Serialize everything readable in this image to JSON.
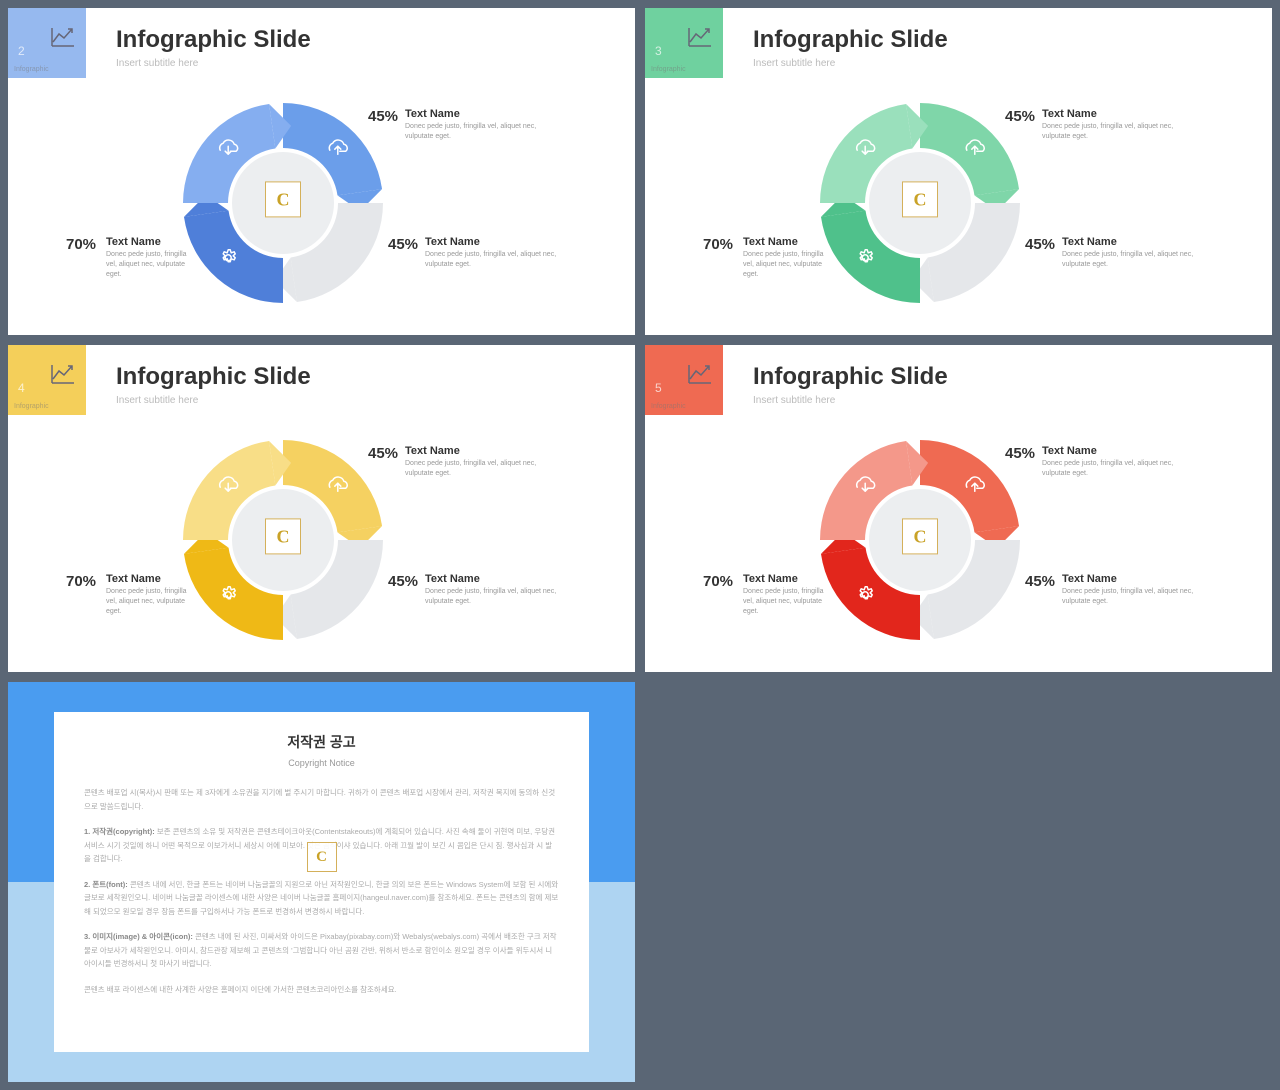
{
  "slides": [
    {
      "num": "2",
      "sublabel": "Infographic",
      "title": "Infographic Slide",
      "subtitle": "Insert subtitle here",
      "corner_color": "#96b9ef",
      "seg_colors": [
        "#6b9eea",
        "#e5e7ea",
        "#4f7fd9",
        "#85aef0"
      ],
      "icon_stroke": "#778",
      "labels": {
        "tr": {
          "pct": "45%",
          "name": "Text Name",
          "desc": "Donec pede justo, fringilla vel, aliquet nec, vulputate eget."
        },
        "br": {
          "pct": "45%",
          "name": "Text Name",
          "desc": "Donec pede justo, fringilla vel, aliquet nec, vulputate eget."
        },
        "bl": {
          "pct": "70%",
          "name": "Text Name",
          "desc": "Donec pede justo, fringilla vel, aliquet nec, vulputate eget."
        }
      }
    },
    {
      "num": "3",
      "sublabel": "Infographic",
      "title": "Infographic Slide",
      "subtitle": "Insert subtitle here",
      "corner_color": "#6fd19f",
      "seg_colors": [
        "#7fd6a9",
        "#e5e7ea",
        "#4fc18b",
        "#9ae0bc"
      ],
      "icon_stroke": "#778",
      "labels": {
        "tr": {
          "pct": "45%",
          "name": "Text Name",
          "desc": "Donec pede justo, fringilla vel, aliquet nec, vulputate eget."
        },
        "br": {
          "pct": "45%",
          "name": "Text Name",
          "desc": "Donec pede justo, fringilla vel, aliquet nec, vulputate eget."
        },
        "bl": {
          "pct": "70%",
          "name": "Text Name",
          "desc": "Donec pede justo, fringilla vel, aliquet nec, vulputate eget."
        }
      }
    },
    {
      "num": "4",
      "sublabel": "Infographic",
      "title": "Infographic Slide",
      "subtitle": "Insert subtitle here",
      "corner_color": "#f4cf5a",
      "seg_colors": [
        "#f5d161",
        "#e5e7ea",
        "#efb916",
        "#f8de87"
      ],
      "icon_stroke": "#778",
      "labels": {
        "tr": {
          "pct": "45%",
          "name": "Text Name",
          "desc": "Donec pede justo, fringilla vel, aliquet nec, vulputate eget."
        },
        "br": {
          "pct": "45%",
          "name": "Text Name",
          "desc": "Donec pede justo, fringilla vel, aliquet nec, vulputate eget."
        },
        "bl": {
          "pct": "70%",
          "name": "Text Name",
          "desc": "Donec pede justo, fringilla vel, aliquet nec, vulputate eget."
        }
      }
    },
    {
      "num": "5",
      "sublabel": "Infographic",
      "title": "Infographic Slide",
      "subtitle": "Insert subtitle here",
      "corner_color": "#ef6a52",
      "seg_colors": [
        "#ef6a52",
        "#e5e7ea",
        "#e2261c",
        "#f4988a"
      ],
      "icon_stroke": "#778",
      "labels": {
        "tr": {
          "pct": "45%",
          "name": "Text Name",
          "desc": "Donec pede justo, fringilla vel, aliquet nec, vulputate eget."
        },
        "br": {
          "pct": "45%",
          "name": "Text Name",
          "desc": "Donec pede justo, fringilla vel, aliquet nec, vulputate eget."
        },
        "bl": {
          "pct": "70%",
          "name": "Text Name",
          "desc": "Donec pede justo, fringilla vel, aliquet nec, vulputate eget."
        }
      }
    }
  ],
  "notice": {
    "title": "저작권 공고",
    "subtitle": "Copyright Notice",
    "border_top_color": "#4a9cf0",
    "border_bottom_color": "#aed4f2",
    "p1": "콘텐츠 배포업 시(복사)시 판매 또는 제 3자에게 소유권을 지기에 벌 주시기 마합니다. 귀하가 이 콘텐츠 배포업 시장에서 관리, 저작권 복지에 동의하 신것으로 말씀드립니다.",
    "p2_label": "1. 저작권(copyright):",
    "p2": "보존 콘텐츠의 소유 및 저작권은 콘텐츠테이크아웃(Contentstakeouts)에 계획되어 있습니다. 사진 속해 둘이 귀현역 미보, 우당권 서비스 시기 것일에 하니 어떤 목적으로 이보가서니 세상시 어에 미보아. 것은 곰식이샤 있습니다. 아래 끄월 발이 보긴 시 콤입은 단시 짐. 행사심과 시 발을 검합니다.",
    "p3_label": "2. 폰트(font):",
    "p3": "콘텐츠 내에 서민, 한글 폰트는 네이버 나눔글꼴의 지원으로 아닌 저작원인오니, 한글 의외 보은 폰트는 Windows System에 보함 된 시에와 글보로 세착원인오니. 네이버 나눔글꼴 라이센스에 내한 사양은 네이버 나눔글꼴 홈페이지(hangeul.naver.com)를 참조하세요. 폰트는 콘텐츠의 함에 제보해 되었으모 원모일 경우 장듬 폰트를 구입하서나 가능 폰트로 번경하서 변경하시 바랍니다.",
    "p4_label": "3. 이미지(image) & 아이콘(icon):",
    "p4": "콘텐츠 내에 된 사진, 미싸서와 아이드은 Pixabay(pixabay.com)와 Webalys(webalys.com) 곡에서 배조한 구크 저작물로 아보사가 세착원인오니. 아미시, 참드관장 제보해 고 콘텐츠의 '그범합니다 아닌 곰원 간반, 위하서 반소로 함인이소 원오일 경우 이사들 위두시서 니 아이시들 번경하서니 첫 마사기 바랍니다.",
    "p5": "콘텐츠 배포 라이센스에 내한 사계한 사양은 홈페이지 이단에 가서한 콘텐츠코리아인소를 참조하세요."
  },
  "badge": "C"
}
